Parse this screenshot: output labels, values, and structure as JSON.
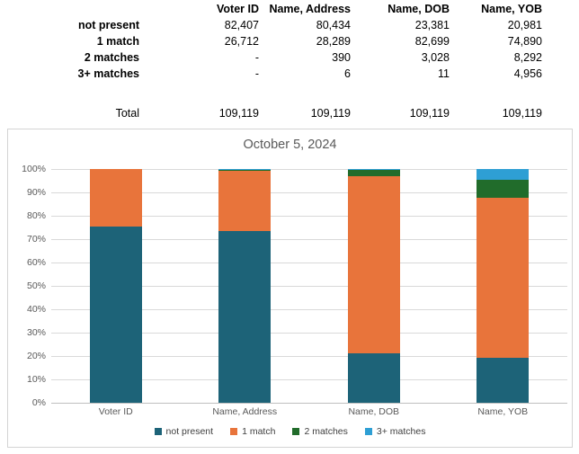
{
  "table": {
    "corner_label": "",
    "columns": [
      "Voter ID",
      "Name, Address",
      "Name, DOB",
      "Name, YOB"
    ],
    "rows": [
      {
        "label": "not present",
        "values": [
          "82,407",
          "80,434",
          "23,381",
          "20,981"
        ]
      },
      {
        "label": "1 match",
        "values": [
          "26,712",
          "28,289",
          "82,699",
          "74,890"
        ]
      },
      {
        "label": "2 matches",
        "values": [
          "-",
          "390",
          "3,028",
          "8,292"
        ]
      },
      {
        "label": "3+ matches",
        "values": [
          "-",
          "6",
          "11",
          "4,956"
        ]
      }
    ],
    "total_row": {
      "label": "Total",
      "values": [
        "109,119",
        "109,119",
        "109,119",
        "109,119"
      ]
    }
  },
  "chart_data": {
    "type": "bar",
    "stacked": true,
    "percent_stacked": true,
    "title": "October 5, 2024",
    "categories": [
      "Voter ID",
      "Name, Address",
      "Name, DOB",
      "Name, YOB"
    ],
    "series": [
      {
        "name": "not present",
        "color": "#1d6378",
        "values": [
          82407,
          80434,
          23381,
          20981
        ]
      },
      {
        "name": "1 match",
        "color": "#e8743b",
        "values": [
          26712,
          28289,
          82699,
          74890
        ]
      },
      {
        "name": "2 matches",
        "color": "#216c2b",
        "values": [
          0,
          390,
          3028,
          8292
        ]
      },
      {
        "name": "3+ matches",
        "color": "#2e9fd4",
        "values": [
          0,
          6,
          11,
          4956
        ]
      }
    ],
    "column_totals": [
      109119,
      109119,
      109119,
      109119
    ],
    "y_axis": {
      "min": 0,
      "max": 100,
      "step": 10,
      "tick_suffix": "%"
    },
    "grid": true,
    "gridline_color": "#d9d9d9",
    "legend_position": "bottom"
  }
}
